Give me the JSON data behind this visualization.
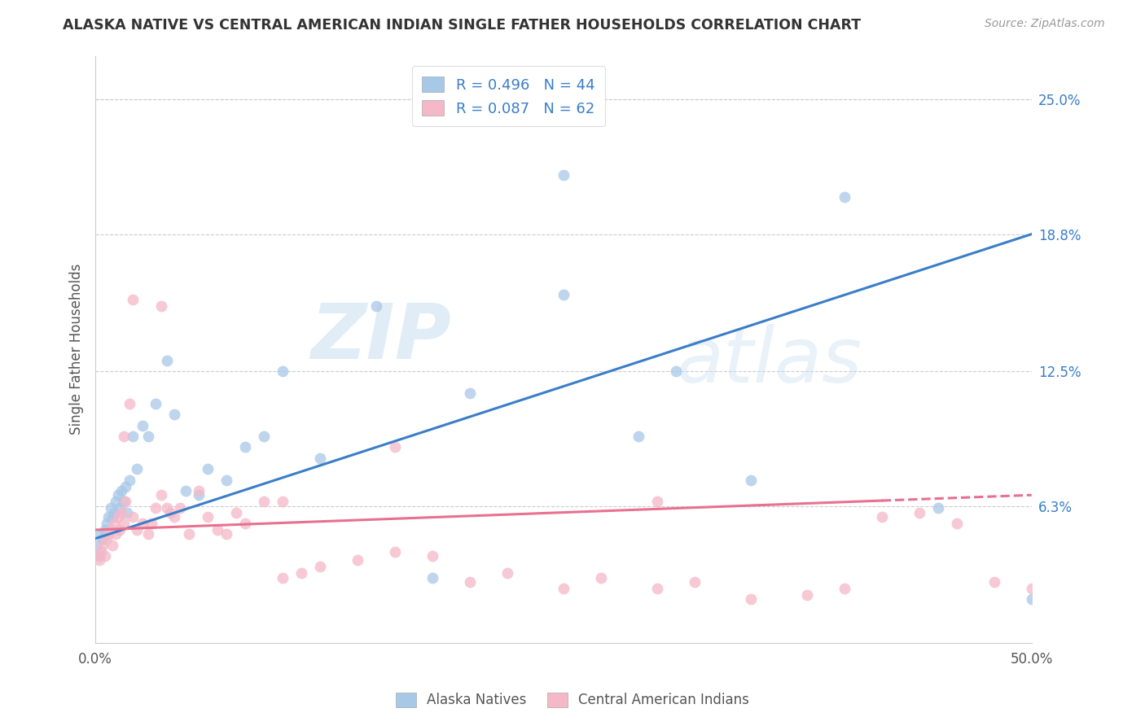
{
  "title": "ALASKA NATIVE VS CENTRAL AMERICAN INDIAN SINGLE FATHER HOUSEHOLDS CORRELATION CHART",
  "source": "Source: ZipAtlas.com",
  "ylabel": "Single Father Households",
  "ytick_labels": [
    "25.0%",
    "18.8%",
    "12.5%",
    "6.3%"
  ],
  "ytick_values": [
    0.25,
    0.188,
    0.125,
    0.063
  ],
  "xlim": [
    0.0,
    0.5
  ],
  "ylim": [
    0.0,
    0.27
  ],
  "color_blue": "#a8c8e8",
  "color_pink": "#f4b8c8",
  "line_blue": "#3a7ec8",
  "line_pink": "#e87090",
  "watermark_zip": "ZIP",
  "watermark_atlas": "atlas",
  "blue_trend_y_start": 0.048,
  "blue_trend_y_end": 0.188,
  "pink_trend_y_start": 0.052,
  "pink_trend_y_end": 0.068,
  "alaska_x": [
    0.001,
    0.002,
    0.003,
    0.004,
    0.005,
    0.006,
    0.007,
    0.008,
    0.009,
    0.01,
    0.011,
    0.012,
    0.013,
    0.014,
    0.015,
    0.016,
    0.017,
    0.018,
    0.02,
    0.022,
    0.025,
    0.028,
    0.032,
    0.038,
    0.042,
    0.048,
    0.055,
    0.06,
    0.07,
    0.08,
    0.09,
    0.1,
    0.12,
    0.15,
    0.18,
    0.2,
    0.25,
    0.29,
    0.35,
    0.4,
    0.25,
    0.31,
    0.45,
    0.5
  ],
  "alaska_y": [
    0.045,
    0.04,
    0.05,
    0.048,
    0.052,
    0.055,
    0.058,
    0.062,
    0.058,
    0.06,
    0.065,
    0.068,
    0.062,
    0.07,
    0.065,
    0.072,
    0.06,
    0.075,
    0.095,
    0.08,
    0.1,
    0.095,
    0.11,
    0.13,
    0.105,
    0.07,
    0.068,
    0.08,
    0.075,
    0.09,
    0.095,
    0.125,
    0.085,
    0.155,
    0.03,
    0.115,
    0.16,
    0.095,
    0.075,
    0.205,
    0.215,
    0.125,
    0.062,
    0.02
  ],
  "central_x": [
    0.001,
    0.002,
    0.003,
    0.004,
    0.005,
    0.006,
    0.007,
    0.008,
    0.009,
    0.01,
    0.011,
    0.012,
    0.013,
    0.014,
    0.015,
    0.016,
    0.018,
    0.02,
    0.022,
    0.025,
    0.028,
    0.03,
    0.032,
    0.035,
    0.038,
    0.04,
    0.042,
    0.045,
    0.05,
    0.055,
    0.06,
    0.065,
    0.07,
    0.075,
    0.08,
    0.09,
    0.1,
    0.11,
    0.12,
    0.14,
    0.16,
    0.18,
    0.2,
    0.22,
    0.25,
    0.27,
    0.3,
    0.32,
    0.35,
    0.38,
    0.4,
    0.42,
    0.44,
    0.46,
    0.48,
    0.5,
    0.015,
    0.02,
    0.035,
    0.1,
    0.16,
    0.3
  ],
  "central_y": [
    0.04,
    0.038,
    0.042,
    0.045,
    0.04,
    0.048,
    0.05,
    0.052,
    0.045,
    0.055,
    0.05,
    0.058,
    0.052,
    0.06,
    0.055,
    0.065,
    0.11,
    0.058,
    0.052,
    0.055,
    0.05,
    0.055,
    0.062,
    0.068,
    0.062,
    0.06,
    0.058,
    0.062,
    0.05,
    0.07,
    0.058,
    0.052,
    0.05,
    0.06,
    0.055,
    0.065,
    0.03,
    0.032,
    0.035,
    0.038,
    0.042,
    0.04,
    0.028,
    0.032,
    0.025,
    0.03,
    0.025,
    0.028,
    0.02,
    0.022,
    0.025,
    0.058,
    0.06,
    0.055,
    0.028,
    0.025,
    0.095,
    0.158,
    0.155,
    0.065,
    0.09,
    0.065
  ]
}
